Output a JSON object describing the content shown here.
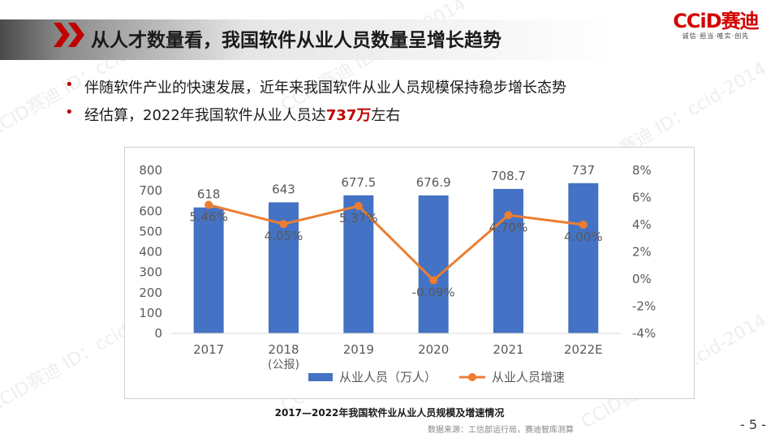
{
  "title": "从人才数量看，我国软件从业人员数量呈增长趋势",
  "logo": {
    "main": "CCiD赛迪",
    "tagline": "诚信·担当·唯实·创先"
  },
  "bullets": [
    {
      "text": "伴随软件产业的快速发展，近年来我国软件从业人员规模保持稳步增长态势"
    },
    {
      "pre": "经估算，2022年我国软件从业人员达",
      "highlight": "737万",
      "post": "左右"
    }
  ],
  "chart_data": {
    "type": "bar",
    "categories": [
      "2017",
      "2018",
      "2019",
      "2020",
      "2021",
      "2022E"
    ],
    "category_sublabels": [
      "",
      "(公报)",
      "",
      "",
      "",
      ""
    ],
    "series": [
      {
        "name": "从业人员（万人）",
        "type": "bar",
        "axis": "left",
        "values": [
          618,
          643,
          677.5,
          676.9,
          708.7,
          737
        ],
        "labels": [
          "618",
          "643",
          "677.5",
          "676.9",
          "708.7",
          "737"
        ]
      },
      {
        "name": "从业人员增速",
        "type": "line",
        "axis": "right",
        "values": [
          5.46,
          4.05,
          5.37,
          -0.09,
          4.7,
          4.0
        ],
        "labels": [
          "5.46%",
          "4.05%",
          "5.37%",
          "-0.09%",
          "4.70%",
          "4.00%"
        ]
      }
    ],
    "y_left": {
      "min": 0,
      "max": 800,
      "step": 100,
      "ticks": [
        "0",
        "100",
        "200",
        "300",
        "400",
        "500",
        "600",
        "700",
        "800"
      ]
    },
    "y_right": {
      "min": -4,
      "max": 8,
      "step": 2,
      "ticks": [
        "-4%",
        "-2%",
        "0%",
        "2%",
        "4%",
        "6%",
        "8%"
      ]
    },
    "legend_position": "bottom",
    "grid": false,
    "colors": {
      "bar": "#4472c4",
      "line": "#ed7d31"
    }
  },
  "caption": "2017—2022年我国软件业从业人员规模及增速情况",
  "source": "数据来源：工信部运行局，赛迪智库测算",
  "page_number": "- 5 -",
  "watermark": "CCID赛迪 ID：ccid-2014"
}
